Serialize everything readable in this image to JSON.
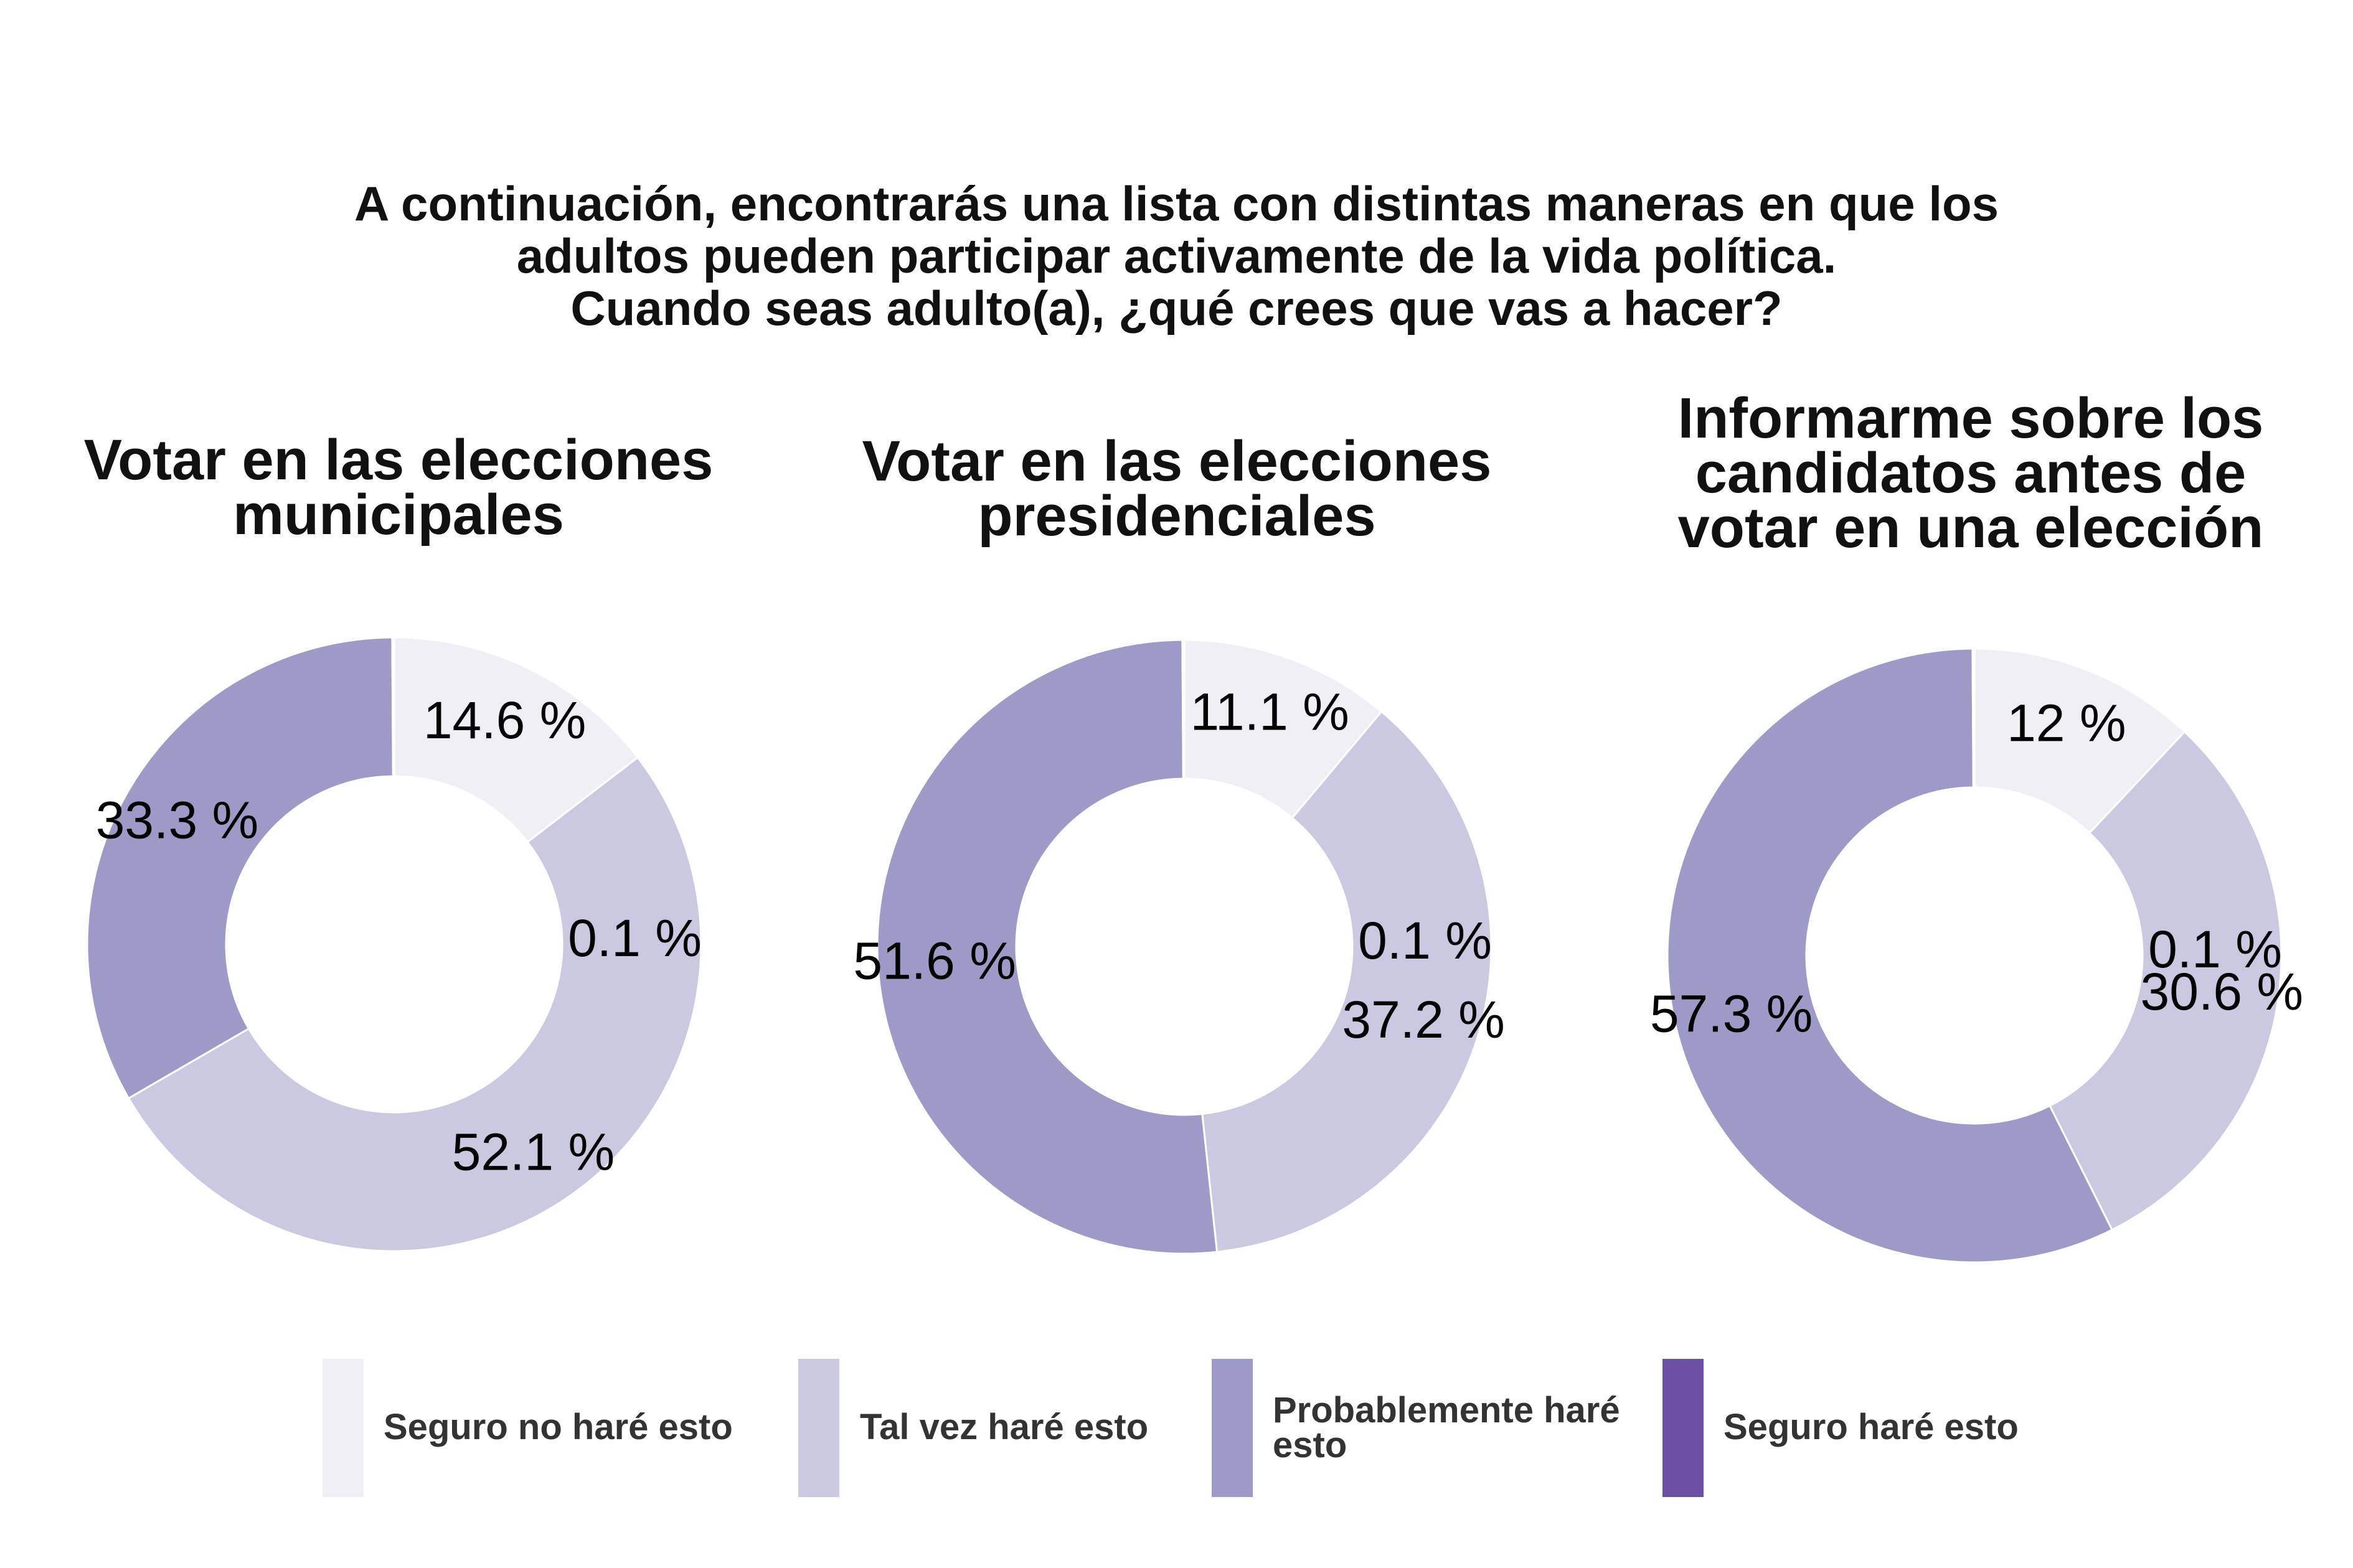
{
  "main_title": "A continuación, encontrarás una lista con distintas maneras en que los\nadultos pueden participar activamente de la vida política.\nCuando seas adulto(a), ¿qué crees que vas a hacer?",
  "legend": {
    "items": [
      {
        "label": "Seguro no haré esto",
        "color": "#f0eff6"
      },
      {
        "label": "Tal vez haré esto",
        "color": "#cbc9e2"
      },
      {
        "label": "Probablemente haré\nesto",
        "color": "#9e9ac8"
      },
      {
        "label": "Seguro haré esto",
        "color": "#6a51a3"
      }
    ]
  },
  "chart_data": [
    {
      "type": "pie",
      "title": "Votar en las elecciones\nmunicipales",
      "categories": [
        "Seguro no haré esto",
        "Tal vez haré esto",
        "Probablemente haré esto",
        "Seguro haré esto"
      ],
      "values": [
        14.6,
        52.1,
        33.3,
        0.1
      ],
      "labels": [
        "14.6 %",
        "52.1 %",
        "33.3 %",
        "0.1 %"
      ]
    },
    {
      "type": "pie",
      "title": "Votar en las elecciones\npresidenciales",
      "categories": [
        "Seguro no haré esto",
        "Tal vez haré esto",
        "Probablemente haré esto",
        "Seguro haré esto"
      ],
      "values": [
        11.1,
        37.2,
        51.6,
        0.1
      ],
      "labels": [
        "11.1 %",
        "37.2 %",
        "51.6 %",
        "0.1 %"
      ]
    },
    {
      "type": "pie",
      "title": "Informarme sobre los\ncandidatos antes de\nvotar en una elección",
      "categories": [
        "Seguro no haré esto",
        "Tal vez haré esto",
        "Probablemente haré esto",
        "Seguro haré esto"
      ],
      "values": [
        12,
        30.6,
        57.3,
        0.1
      ],
      "labels": [
        "12 %",
        "30.6 %",
        "57.3 %",
        "0.1 %"
      ]
    }
  ]
}
